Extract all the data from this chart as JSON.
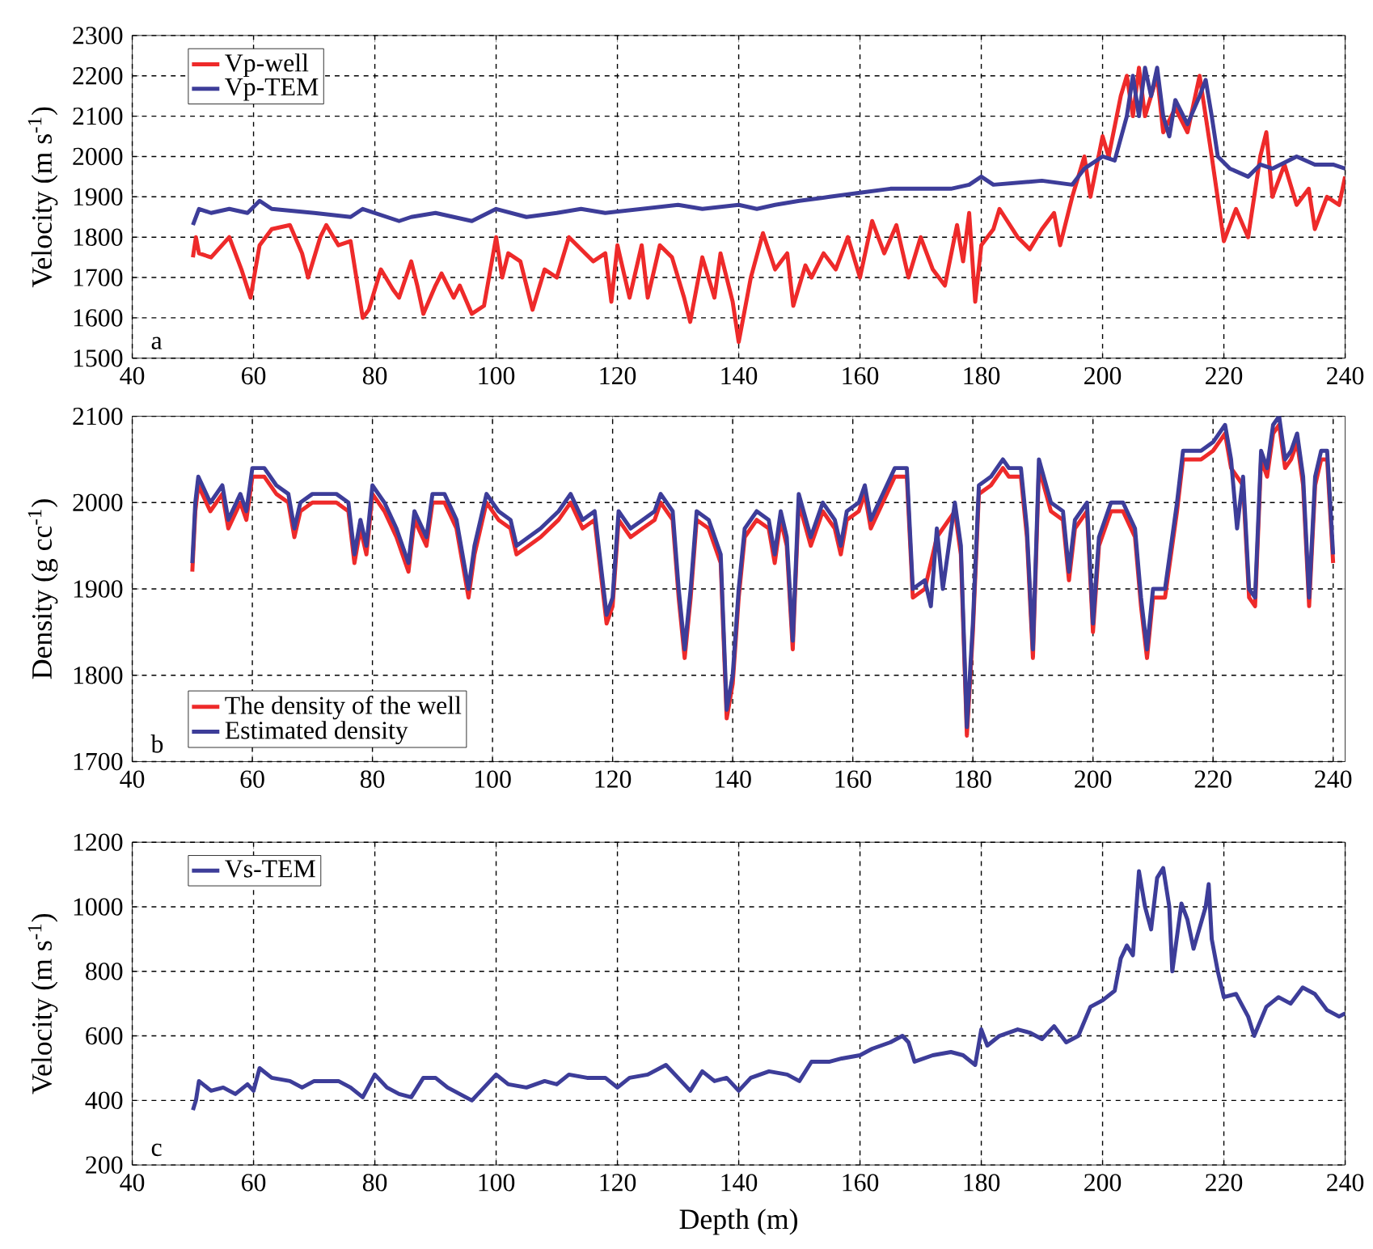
{
  "chart_data": [
    {
      "type": "line",
      "ylabel": "Velocity (m s$^{-1}$)",
      "xlim": [
        40,
        240
      ],
      "xticks": [
        40,
        60,
        80,
        100,
        120,
        140,
        160,
        180,
        200,
        220,
        240
      ],
      "ylim": [
        1500,
        2300
      ],
      "yticks": [
        1500,
        1600,
        1700,
        1800,
        1900,
        2000,
        2100,
        2200,
        2300
      ],
      "grid": true,
      "legend": "top left",
      "annotations": [
        "a"
      ],
      "series": [
        {
          "name": "Vp-well",
          "color": "#ee2a2a",
          "x": [
            50,
            50.5,
            51,
            53,
            56,
            58,
            59.5,
            61,
            63,
            66,
            68,
            69,
            71,
            72,
            74,
            76,
            78,
            79,
            81,
            83,
            84,
            86,
            87,
            88,
            90,
            91,
            93,
            94,
            96,
            98,
            100,
            101,
            102,
            104,
            106,
            108,
            110,
            112,
            114,
            116,
            118,
            119,
            120,
            122,
            124,
            125,
            127,
            129,
            131,
            132,
            134,
            136,
            137,
            139,
            140,
            142,
            144,
            146,
            148,
            149,
            151,
            152,
            154,
            156,
            158,
            160,
            162,
            164,
            166,
            168,
            170,
            172,
            174,
            176,
            177,
            178,
            179,
            180,
            182,
            183,
            186,
            188,
            190,
            192,
            193,
            195,
            197,
            198,
            200,
            201,
            203,
            204,
            205,
            206,
            207,
            209,
            210,
            212,
            214,
            216,
            218,
            220,
            222,
            224,
            226,
            227,
            228,
            230,
            232,
            234,
            235,
            237,
            239,
            240
          ],
          "values": [
            1750,
            1800,
            1760,
            1750,
            1800,
            1720,
            1650,
            1780,
            1820,
            1830,
            1760,
            1700,
            1800,
            1830,
            1780,
            1790,
            1600,
            1620,
            1720,
            1670,
            1650,
            1740,
            1680,
            1610,
            1680,
            1710,
            1650,
            1680,
            1610,
            1630,
            1800,
            1700,
            1760,
            1740,
            1620,
            1720,
            1700,
            1800,
            1770,
            1740,
            1760,
            1640,
            1780,
            1650,
            1780,
            1650,
            1780,
            1750,
            1650,
            1590,
            1750,
            1650,
            1760,
            1640,
            1540,
            1700,
            1810,
            1720,
            1760,
            1630,
            1730,
            1700,
            1760,
            1720,
            1800,
            1700,
            1840,
            1760,
            1830,
            1700,
            1800,
            1720,
            1680,
            1830,
            1740,
            1860,
            1640,
            1780,
            1820,
            1870,
            1800,
            1770,
            1820,
            1860,
            1780,
            1900,
            2000,
            1900,
            2050,
            2000,
            2150,
            2200,
            2100,
            2220,
            2100,
            2200,
            2060,
            2120,
            2060,
            2200,
            2000,
            1790,
            1870,
            1800,
            2000,
            2060,
            1900,
            1980,
            1880,
            1920,
            1820,
            1900,
            1880,
            1950
          ]
        },
        {
          "name": "Vp-TEM",
          "color": "#3d3d99",
          "x": [
            50,
            51,
            53,
            56,
            59,
            61,
            63,
            70,
            76,
            78,
            80,
            84,
            86,
            90,
            96,
            100,
            105,
            110,
            114,
            118,
            124,
            130,
            134,
            140,
            143,
            146,
            150,
            155,
            160,
            165,
            170,
            175,
            178,
            180,
            182,
            190,
            195,
            197,
            200,
            202,
            204,
            205,
            206,
            207,
            208,
            209,
            210,
            211,
            212,
            214,
            216,
            217,
            218,
            219,
            221,
            224,
            226,
            228,
            232,
            235,
            238,
            240
          ],
          "values": [
            1830,
            1870,
            1860,
            1870,
            1860,
            1890,
            1870,
            1860,
            1850,
            1870,
            1860,
            1840,
            1850,
            1860,
            1840,
            1870,
            1850,
            1860,
            1870,
            1860,
            1870,
            1880,
            1870,
            1880,
            1870,
            1880,
            1890,
            1900,
            1910,
            1920,
            1920,
            1920,
            1930,
            1950,
            1930,
            1940,
            1930,
            1970,
            2000,
            1990,
            2100,
            2200,
            2100,
            2220,
            2150,
            2220,
            2100,
            2050,
            2140,
            2080,
            2150,
            2190,
            2100,
            2000,
            1970,
            1950,
            1980,
            1970,
            2000,
            1980,
            1980,
            1970
          ]
        }
      ]
    },
    {
      "type": "line",
      "ylabel": "Density (g cc$^{-1}$)",
      "xlim": [
        40,
        242
      ],
      "xticks": [
        40,
        60,
        80,
        100,
        120,
        140,
        160,
        180,
        200,
        220,
        240
      ],
      "ylim": [
        1700,
        2100
      ],
      "yticks": [
        1700,
        1800,
        1900,
        2000,
        2100
      ],
      "grid": true,
      "legend": "bottom left",
      "annotations": [
        "b"
      ],
      "series": [
        {
          "name": "The density of the well",
          "color": "#ee2a2a",
          "x": [
            50,
            50.5,
            51,
            53,
            55,
            56,
            58,
            59,
            60,
            62,
            64,
            66,
            67,
            68,
            70,
            74,
            76,
            77,
            78,
            79,
            80,
            82,
            84,
            86,
            87,
            89,
            90,
            92,
            94,
            96,
            97,
            99,
            101,
            103,
            104,
            106,
            108,
            111,
            113,
            115,
            117,
            119,
            120,
            121,
            123,
            125,
            127,
            128,
            130,
            131,
            132,
            133,
            134,
            136,
            137,
            138,
            139,
            140,
            141,
            142,
            144,
            146,
            147,
            148,
            149,
            150,
            151,
            153,
            155,
            157,
            158,
            159,
            161,
            162,
            163,
            165,
            167,
            169,
            170,
            172,
            173,
            174,
            175,
            177,
            178,
            179,
            180,
            181,
            183,
            185,
            186,
            188,
            189,
            190,
            191,
            193,
            195,
            196,
            197,
            199,
            200,
            201,
            203,
            205,
            207,
            208,
            209,
            210,
            212,
            214,
            215,
            218,
            220,
            221,
            222,
            223,
            224,
            225,
            226,
            227,
            228,
            229,
            230,
            231,
            232,
            233,
            234,
            235,
            236,
            237,
            238,
            239,
            240
          ],
          "values": [
            1920,
            1990,
            2020,
            1990,
            2010,
            1970,
            2000,
            1980,
            2030,
            2030,
            2010,
            2000,
            1960,
            1990,
            2000,
            2000,
            1990,
            1930,
            1970,
            1940,
            2010,
            1990,
            1960,
            1920,
            1980,
            1950,
            2000,
            2000,
            1970,
            1890,
            1940,
            2000,
            1980,
            1970,
            1940,
            1950,
            1960,
            1980,
            2000,
            1970,
            1980,
            1860,
            1880,
            1980,
            1960,
            1970,
            1980,
            2000,
            1980,
            1890,
            1820,
            1890,
            1980,
            1970,
            1950,
            1930,
            1750,
            1790,
            1890,
            1960,
            1980,
            1970,
            1930,
            1980,
            1950,
            1830,
            2000,
            1950,
            1990,
            1970,
            1940,
            1980,
            1990,
            2010,
            1970,
            2000,
            2030,
            2030,
            1890,
            1900,
            null,
            1960,
            null,
            1990,
            1940,
            1730,
            1850,
            2010,
            2020,
            2040,
            2030,
            2030,
            1960,
            1820,
            2040,
            1990,
            1980,
            1910,
            1970,
            1990,
            1850,
            1950,
            1990,
            1990,
            1960,
            1880,
            1820,
            1890,
            1890,
            1990,
            2050,
            2050,
            2060,
            2070,
            2080,
            2040,
            null,
            2020,
            1890,
            1880,
            2050,
            2030,
            2080,
            2090,
            2040,
            2050,
            2070,
            2020,
            1880,
            2020,
            2050,
            2050,
            1930
          ]
        },
        {
          "name": "Estimated density",
          "color": "#3d3d99",
          "x": [
            50,
            50.5,
            51,
            53,
            55,
            56,
            58,
            59,
            60,
            62,
            64,
            66,
            67,
            68,
            70,
            74,
            76,
            77,
            78,
            79,
            80,
            82,
            84,
            86,
            87,
            89,
            90,
            92,
            94,
            96,
            97,
            99,
            101,
            103,
            104,
            106,
            108,
            111,
            113,
            115,
            117,
            119,
            120,
            121,
            123,
            125,
            127,
            128,
            130,
            131,
            132,
            133,
            134,
            136,
            137,
            138,
            139,
            140,
            141,
            142,
            144,
            146,
            147,
            148,
            149,
            150,
            151,
            153,
            155,
            157,
            158,
            159,
            161,
            162,
            163,
            165,
            167,
            169,
            170,
            172,
            173,
            174,
            175,
            177,
            178,
            179,
            180,
            181,
            183,
            185,
            186,
            188,
            189,
            190,
            191,
            193,
            195,
            196,
            197,
            199,
            200,
            201,
            203,
            205,
            207,
            208,
            209,
            210,
            212,
            214,
            215,
            218,
            220,
            221,
            222,
            223,
            224,
            225,
            226,
            227,
            228,
            229,
            230,
            231,
            232,
            233,
            234,
            235,
            236,
            237,
            238,
            239,
            240
          ],
          "values": [
            1930,
            2000,
            2030,
            2000,
            2020,
            1980,
            2010,
            1990,
            2040,
            2040,
            2020,
            2010,
            1970,
            2000,
            2010,
            2010,
            2000,
            1940,
            1980,
            1950,
            2020,
            2000,
            1970,
            1930,
            1990,
            1960,
            2010,
            2010,
            1980,
            1900,
            1950,
            2010,
            1990,
            1980,
            1950,
            1960,
            1970,
            1990,
            2010,
            1980,
            1990,
            1870,
            1890,
            1990,
            1970,
            1980,
            1990,
            2010,
            1990,
            1900,
            1830,
            1900,
            1990,
            1980,
            1960,
            1940,
            1760,
            1800,
            1900,
            1970,
            1990,
            1980,
            1940,
            1990,
            1960,
            1840,
            2010,
            1960,
            2000,
            1980,
            1950,
            1990,
            2000,
            2020,
            1980,
            2010,
            2040,
            2040,
            1900,
            1910,
            1880,
            1970,
            1900,
            2000,
            1950,
            1740,
            1860,
            2020,
            2030,
            2050,
            2040,
            2040,
            1970,
            1830,
            2050,
            2000,
            1990,
            1920,
            1980,
            2000,
            1860,
            1960,
            2000,
            2000,
            1970,
            1890,
            1830,
            1900,
            1900,
            2000,
            2060,
            2060,
            2070,
            2080,
            2090,
            2050,
            1970,
            2030,
            1900,
            1890,
            2060,
            2040,
            2090,
            2100,
            2050,
            2060,
            2080,
            2030,
            1890,
            2030,
            2060,
            2060,
            1940
          ]
        }
      ]
    },
    {
      "type": "line",
      "xlabel": "Depth (m)",
      "ylabel": "Velocity (m s$^{-1}$)",
      "xlim": [
        40,
        240
      ],
      "xticks": [
        40,
        60,
        80,
        100,
        120,
        140,
        160,
        180,
        200,
        220,
        240
      ],
      "ylim": [
        200,
        1200
      ],
      "yticks": [
        200,
        400,
        600,
        800,
        1000,
        1200
      ],
      "grid": true,
      "legend": "top left",
      "annotations": [
        "c"
      ],
      "series": [
        {
          "name": "Vs-TEM",
          "color": "#3d3d99",
          "x": [
            50,
            50.5,
            51,
            53,
            55,
            57,
            59,
            60,
            61,
            63,
            66,
            68,
            70,
            74,
            76,
            78,
            80,
            82,
            84,
            86,
            88,
            90,
            92,
            94,
            96,
            98,
            100,
            102,
            105,
            108,
            110,
            112,
            115,
            118,
            120,
            122,
            125,
            128,
            130,
            132,
            134,
            136,
            138,
            140,
            142,
            145,
            148,
            150,
            152,
            155,
            157,
            160,
            162,
            165,
            167,
            168,
            169,
            172,
            175,
            177,
            179,
            180,
            181,
            183,
            186,
            188,
            190,
            192,
            194,
            196,
            198,
            200,
            202,
            203,
            204,
            205,
            206,
            207,
            208,
            209,
            210,
            211,
            211.5,
            213,
            214,
            215,
            217,
            217.5,
            218,
            219,
            220,
            222,
            224,
            225,
            227,
            229,
            231,
            233,
            235,
            237,
            239,
            240
          ],
          "values": [
            370,
            400,
            460,
            430,
            440,
            420,
            450,
            430,
            500,
            470,
            460,
            440,
            460,
            460,
            440,
            410,
            480,
            440,
            420,
            410,
            470,
            470,
            440,
            420,
            400,
            440,
            480,
            450,
            440,
            460,
            450,
            480,
            470,
            470,
            440,
            470,
            480,
            510,
            470,
            430,
            490,
            460,
            470,
            430,
            470,
            490,
            480,
            460,
            520,
            520,
            530,
            540,
            560,
            580,
            600,
            580,
            520,
            540,
            550,
            540,
            510,
            620,
            570,
            600,
            620,
            610,
            590,
            630,
            580,
            600,
            690,
            710,
            740,
            840,
            880,
            850,
            1110,
            1000,
            930,
            1090,
            1120,
            1000,
            800,
            1010,
            960,
            870,
            1000,
            1070,
            900,
            800,
            720,
            730,
            660,
            600,
            690,
            720,
            700,
            750,
            730,
            680,
            660,
            670
          ]
        }
      ]
    }
  ]
}
